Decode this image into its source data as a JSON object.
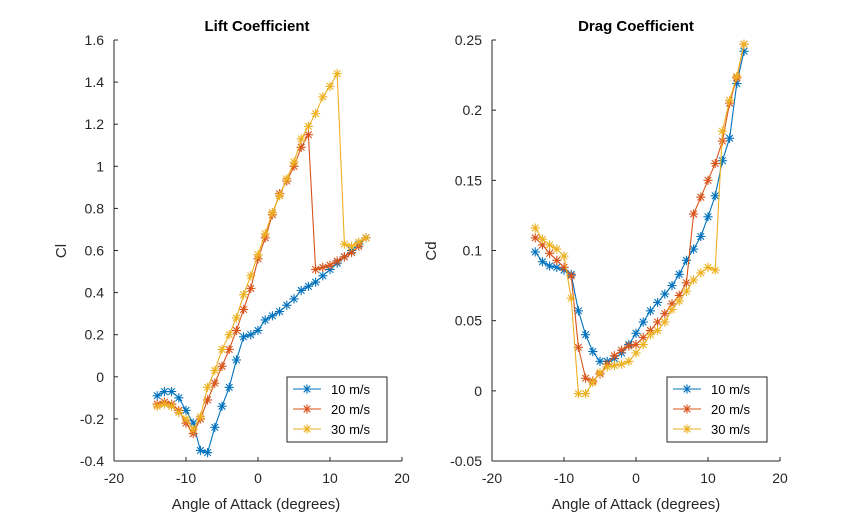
{
  "chart_data": [
    {
      "type": "line",
      "title": "Lift Coefficient",
      "xlabel": "Angle of Attack (degrees)",
      "ylabel": "Cl",
      "xlim": [
        -20,
        20
      ],
      "ylim": [
        -0.4,
        1.6
      ],
      "xticks": [
        "-20",
        "-10",
        "0",
        "10",
        "20"
      ],
      "yticks": [
        "-0.4",
        "-0.2",
        "0",
        "0.2",
        "0.4",
        "0.6",
        "0.8",
        "1",
        "1.2",
        "1.4",
        "1.6"
      ],
      "legend_position": "bottom-right",
      "series": [
        {
          "name": "10 m/s",
          "color": "#0072BD",
          "points": [
            [
              -14,
              -0.09
            ],
            [
              -13,
              -0.07
            ],
            [
              -12,
              -0.07
            ],
            [
              -11,
              -0.1
            ],
            [
              -10,
              -0.16
            ],
            [
              -9,
              -0.22
            ],
            [
              -8,
              -0.35
            ],
            [
              -7,
              -0.36
            ],
            [
              -6,
              -0.24
            ],
            [
              -5,
              -0.14
            ],
            [
              -4,
              -0.05
            ],
            [
              -3,
              0.08
            ],
            [
              -2,
              0.19
            ],
            [
              -1,
              0.2
            ],
            [
              0,
              0.22
            ],
            [
              1,
              0.27
            ],
            [
              2,
              0.29
            ],
            [
              3,
              0.31
            ],
            [
              4,
              0.34
            ],
            [
              5,
              0.37
            ],
            [
              6,
              0.41
            ],
            [
              7,
              0.43
            ],
            [
              8,
              0.45
            ],
            [
              9,
              0.48
            ],
            [
              10,
              0.51
            ],
            [
              11,
              0.54
            ],
            [
              12,
              0.57
            ],
            [
              13,
              0.6
            ],
            [
              14,
              0.63
            ],
            [
              15,
              0.66
            ]
          ]
        },
        {
          "name": "20 m/s",
          "color": "#D95319",
          "points": [
            [
              -14,
              -0.13
            ],
            [
              -13,
              -0.12
            ],
            [
              -12,
              -0.13
            ],
            [
              -11,
              -0.16
            ],
            [
              -10,
              -0.22
            ],
            [
              -9,
              -0.27
            ],
            [
              -8,
              -0.2
            ],
            [
              -7,
              -0.11
            ],
            [
              -6,
              -0.03
            ],
            [
              -5,
              0.05
            ],
            [
              -4,
              0.13
            ],
            [
              -3,
              0.22
            ],
            [
              -2,
              0.32
            ],
            [
              -1,
              0.42
            ],
            [
              0,
              0.56
            ],
            [
              1,
              0.66
            ],
            [
              2,
              0.77
            ],
            [
              3,
              0.87
            ],
            [
              4,
              0.93
            ],
            [
              5,
              1.0
            ],
            [
              6,
              1.09
            ],
            [
              7,
              1.15
            ],
            [
              8,
              0.51
            ],
            [
              9,
              0.52
            ],
            [
              10,
              0.53
            ],
            [
              11,
              0.55
            ],
            [
              12,
              0.57
            ],
            [
              13,
              0.59
            ],
            [
              14,
              0.62
            ],
            [
              15,
              0.66
            ]
          ]
        },
        {
          "name": "30 m/s",
          "color": "#EDB120",
          "points": [
            [
              -14,
              -0.14
            ],
            [
              -13,
              -0.13
            ],
            [
              -12,
              -0.14
            ],
            [
              -11,
              -0.17
            ],
            [
              -10,
              -0.2
            ],
            [
              -9,
              -0.25
            ],
            [
              -8,
              -0.19
            ],
            [
              -7,
              -0.05
            ],
            [
              -6,
              0.03
            ],
            [
              -5,
              0.13
            ],
            [
              -4,
              0.2
            ],
            [
              -3,
              0.28
            ],
            [
              -2,
              0.39
            ],
            [
              -1,
              0.48
            ],
            [
              0,
              0.58
            ],
            [
              1,
              0.68
            ],
            [
              2,
              0.78
            ],
            [
              3,
              0.86
            ],
            [
              4,
              0.94
            ],
            [
              5,
              1.02
            ],
            [
              6,
              1.13
            ],
            [
              7,
              1.19
            ],
            [
              8,
              1.25
            ],
            [
              9,
              1.33
            ],
            [
              10,
              1.38
            ],
            [
              11,
              1.44
            ],
            [
              12,
              0.63
            ],
            [
              13,
              0.62
            ],
            [
              14,
              0.64
            ],
            [
              15,
              0.66
            ]
          ]
        }
      ]
    },
    {
      "type": "line",
      "title": "Drag Coefficient",
      "xlabel": "Angle of Attack (degrees)",
      "ylabel": "Cd",
      "xlim": [
        -20,
        20
      ],
      "ylim": [
        -0.05,
        0.25
      ],
      "xticks": [
        "-20",
        "-10",
        "0",
        "10",
        "20"
      ],
      "yticks": [
        "-0.05",
        "0",
        "0.05",
        "0.1",
        "0.15",
        "0.2",
        "0.25"
      ],
      "legend_position": "bottom-right",
      "series": [
        {
          "name": "10 m/s",
          "color": "#0072BD",
          "points": [
            [
              -14,
              0.099
            ],
            [
              -13,
              0.092
            ],
            [
              -12,
              0.089
            ],
            [
              -11,
              0.088
            ],
            [
              -10,
              0.086
            ],
            [
              -9,
              0.083
            ],
            [
              -8,
              0.057
            ],
            [
              -7,
              0.04
            ],
            [
              -6,
              0.028
            ],
            [
              -5,
              0.021
            ],
            [
              -4,
              0.021
            ],
            [
              -3,
              0.023
            ],
            [
              -2,
              0.027
            ],
            [
              -1,
              0.033
            ],
            [
              0,
              0.041
            ],
            [
              1,
              0.049
            ],
            [
              2,
              0.057
            ],
            [
              3,
              0.063
            ],
            [
              4,
              0.069
            ],
            [
              5,
              0.075
            ],
            [
              6,
              0.083
            ],
            [
              7,
              0.093
            ],
            [
              8,
              0.101
            ],
            [
              9,
              0.11
            ],
            [
              10,
              0.124
            ],
            [
              11,
              0.139
            ],
            [
              12,
              0.164
            ],
            [
              13,
              0.18
            ],
            [
              14,
              0.219
            ],
            [
              15,
              0.242
            ]
          ]
        },
        {
          "name": "20 m/s",
          "color": "#D95319",
          "points": [
            [
              -14,
              0.109
            ],
            [
              -13,
              0.104
            ],
            [
              -12,
              0.098
            ],
            [
              -11,
              0.093
            ],
            [
              -10,
              0.088
            ],
            [
              -9,
              0.082
            ],
            [
              -8,
              0.031
            ],
            [
              -7,
              0.009
            ],
            [
              -6,
              0.007
            ],
            [
              -5,
              0.012
            ],
            [
              -4,
              0.019
            ],
            [
              -3,
              0.025
            ],
            [
              -2,
              0.029
            ],
            [
              -1,
              0.032
            ],
            [
              0,
              0.033
            ],
            [
              1,
              0.038
            ],
            [
              2,
              0.043
            ],
            [
              3,
              0.049
            ],
            [
              4,
              0.055
            ],
            [
              5,
              0.062
            ],
            [
              6,
              0.068
            ],
            [
              7,
              0.077
            ],
            [
              8,
              0.126
            ],
            [
              9,
              0.138
            ],
            [
              10,
              0.15
            ],
            [
              11,
              0.162
            ],
            [
              12,
              0.178
            ],
            [
              13,
              0.205
            ],
            [
              14,
              0.223
            ],
            [
              15,
              0.247
            ]
          ]
        },
        {
          "name": "30 m/s",
          "color": "#EDB120",
          "points": [
            [
              -14,
              0.116
            ],
            [
              -13,
              0.108
            ],
            [
              -12,
              0.104
            ],
            [
              -11,
              0.101
            ],
            [
              -10,
              0.096
            ],
            [
              -9,
              0.066
            ],
            [
              -8,
              -0.002
            ],
            [
              -7,
              -0.002
            ],
            [
              -6,
              0.006
            ],
            [
              -5,
              0.013
            ],
            [
              -4,
              0.017
            ],
            [
              -3,
              0.018
            ],
            [
              -2,
              0.019
            ],
            [
              -1,
              0.021
            ],
            [
              0,
              0.027
            ],
            [
              1,
              0.033
            ],
            [
              2,
              0.04
            ],
            [
              3,
              0.043
            ],
            [
              4,
              0.049
            ],
            [
              5,
              0.058
            ],
            [
              6,
              0.064
            ],
            [
              7,
              0.071
            ],
            [
              8,
              0.079
            ],
            [
              9,
              0.084
            ],
            [
              10,
              0.088
            ],
            [
              11,
              0.086
            ],
            [
              12,
              0.185
            ],
            [
              13,
              0.207
            ],
            [
              14,
              0.224
            ],
            [
              15,
              0.247
            ]
          ]
        }
      ]
    }
  ]
}
